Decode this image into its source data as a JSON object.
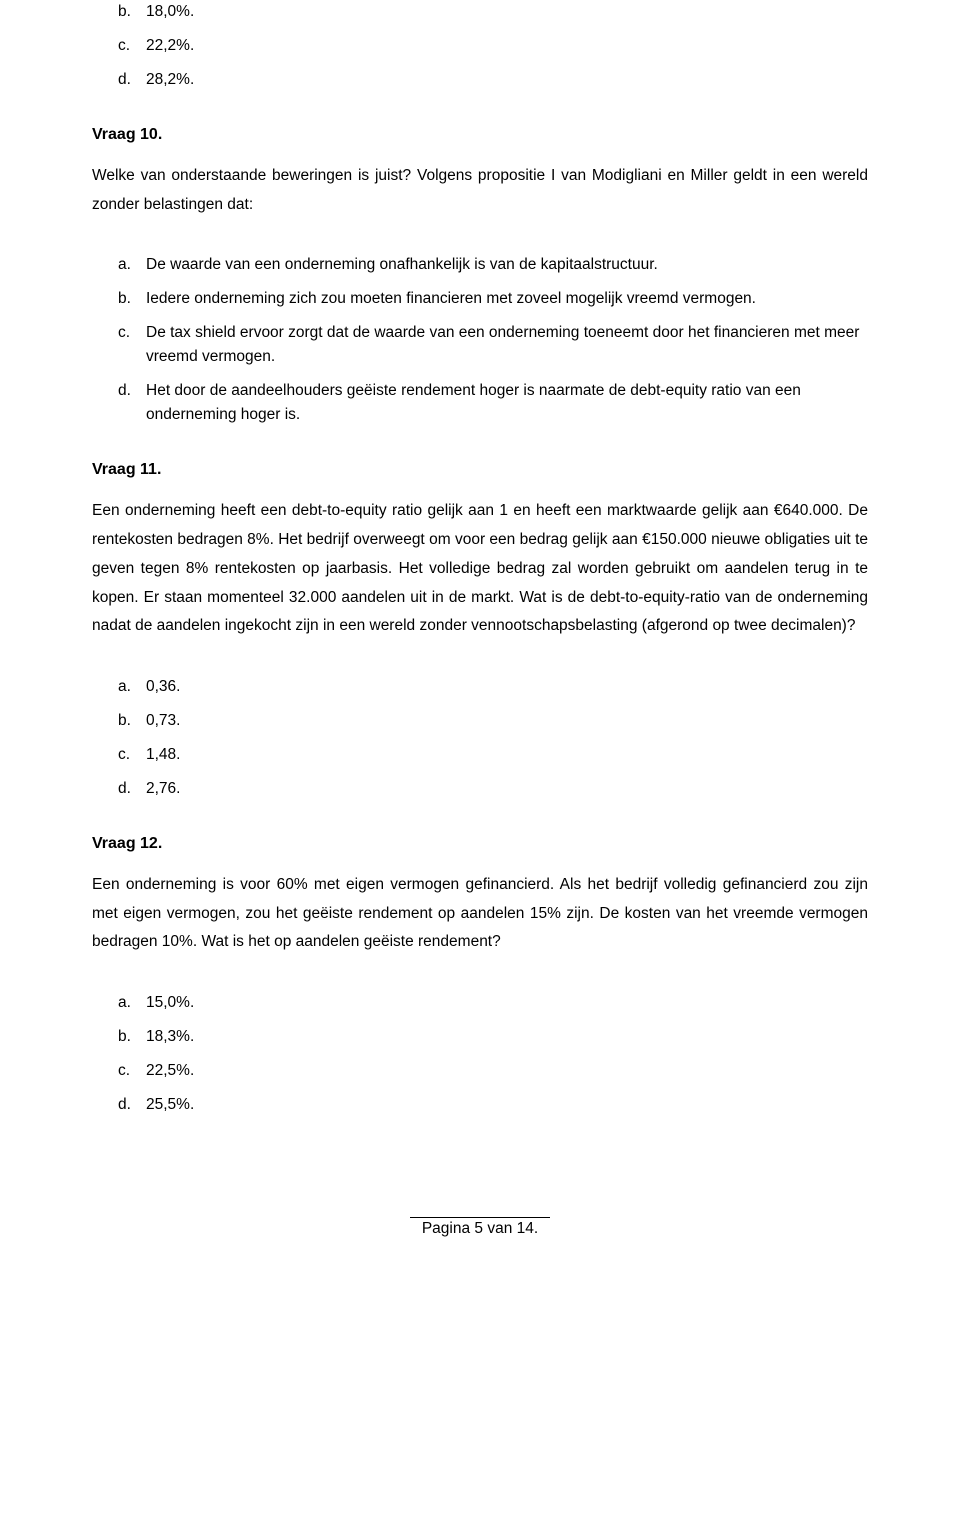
{
  "q_prev": {
    "options": [
      {
        "letter": "b.",
        "text": "18,0%."
      },
      {
        "letter": "c.",
        "text": "22,2%."
      },
      {
        "letter": "d.",
        "text": "28,2%."
      }
    ]
  },
  "q10": {
    "heading": "Vraag 10.",
    "intro": "Welke van onderstaande beweringen is juist? Volgens propositie I van Modigliani en Miller geldt in een wereld zonder belastingen dat:",
    "options": [
      {
        "letter": "a.",
        "text": "De waarde van een onderneming onafhankelijk is van de kapitaalstructuur."
      },
      {
        "letter": "b.",
        "text": "Iedere onderneming zich zou moeten financieren met zoveel mogelijk vreemd vermogen."
      },
      {
        "letter": "c.",
        "text": "De tax shield ervoor zorgt dat de waarde van een onderneming toeneemt door het financieren met meer vreemd vermogen."
      },
      {
        "letter": "d.",
        "text": "Het door de aandeelhouders geëiste rendement hoger is naarmate de debt-equity ratio van een onderneming hoger is."
      }
    ]
  },
  "q11": {
    "heading": "Vraag 11.",
    "intro": "Een onderneming heeft een debt-to-equity ratio gelijk aan 1 en heeft een marktwaarde gelijk aan €640.000. De rentekosten bedragen 8%. Het bedrijf overweegt om voor een bedrag gelijk aan €150.000 nieuwe obligaties uit te geven tegen 8% rentekosten op jaarbasis. Het volledige bedrag zal worden gebruikt om aandelen terug in te kopen. Er staan momenteel 32.000 aandelen uit in de markt. Wat is de debt-to-equity-ratio van de onderneming nadat de aandelen ingekocht zijn in een wereld zonder vennootschapsbelasting (afgerond op twee decimalen)?",
    "options": [
      {
        "letter": "a.",
        "text": "0,36."
      },
      {
        "letter": "b.",
        "text": "0,73."
      },
      {
        "letter": "c.",
        "text": "1,48."
      },
      {
        "letter": "d.",
        "text": "2,76."
      }
    ]
  },
  "q12": {
    "heading": "Vraag 12.",
    "intro": "Een onderneming is voor 60% met eigen vermogen gefinancierd. Als het bedrijf volledig gefinancierd zou zijn met eigen vermogen, zou het geëiste rendement op aandelen 15% zijn. De kosten van het vreemde vermogen bedragen 10%. Wat is het op aandelen geëiste rendement?",
    "options": [
      {
        "letter": "a.",
        "text": "15,0%."
      },
      {
        "letter": "b.",
        "text": "18,3%."
      },
      {
        "letter": "c.",
        "text": "22,5%."
      },
      {
        "letter": "d.",
        "text": "25,5%."
      }
    ]
  },
  "footer": "Pagina 5 van 14."
}
